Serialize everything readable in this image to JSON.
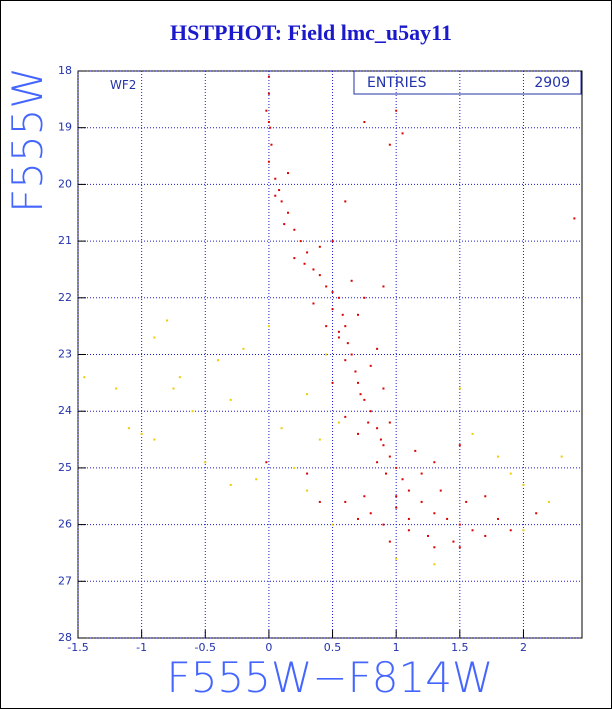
{
  "chart_data": {
    "type": "scatter",
    "title": "HSTPHOT: Field lmc_u5ay11",
    "annotation": "WF2",
    "stats": {
      "label": "ENTRIES",
      "value": 2909
    },
    "x_label": "F555W−F814W",
    "y_label": "F555W",
    "xlim": [
      -1.5,
      2.46
    ],
    "ylim": [
      18,
      28
    ],
    "y_inverted": true,
    "grid": true,
    "grid_color": "#1a1acc",
    "xticks": [
      -1.5,
      -1,
      -0.5,
      0,
      0.5,
      1,
      1.5,
      2
    ],
    "yticks": [
      18,
      19,
      20,
      21,
      22,
      23,
      24,
      25,
      26,
      27,
      28
    ],
    "series": [
      {
        "color": "#dd0000",
        "x": [
          0.0,
          0.0,
          -0.02,
          0.01,
          0.02,
          0.0,
          0.05,
          0.08,
          0.1,
          0.15,
          0.12,
          0.2,
          0.25,
          0.3,
          0.28,
          0.35,
          0.4,
          0.45,
          0.5,
          0.55,
          0.5,
          0.58,
          0.6,
          0.55,
          0.62,
          0.65,
          0.6,
          0.68,
          0.7,
          0.72,
          0.75,
          0.8,
          0.78,
          0.85,
          0.88,
          0.9,
          0.95,
          1.0,
          0.92,
          1.05,
          1.1,
          1.0,
          1.2,
          1.3,
          1.4,
          1.5,
          1.6,
          1.7,
          1.45,
          0.8,
          0.7,
          0.9,
          1.1,
          1.25,
          0.75,
          0.85,
          1.15,
          0.95,
          0.7,
          0.6,
          0.9,
          0.8,
          0.45,
          0.7,
          0.35,
          0.65,
          0.2,
          0.4,
          0.5,
          0.05,
          0.15,
          0.0,
          1.0,
          1.05,
          0.95,
          0.75,
          2.4,
          0.6,
          0.5,
          1.3,
          1.2,
          1.35,
          1.55,
          1.8,
          1.9,
          0.95,
          1.3,
          1.5,
          0.4,
          0.3,
          -0.02,
          1.5,
          0.85,
          0.55,
          0.75,
          0.9,
          1.7,
          1.0,
          1.1,
          0.6,
          2.1
        ],
        "y": [
          18.1,
          18.4,
          18.7,
          19.0,
          19.3,
          19.6,
          19.9,
          20.1,
          20.3,
          20.5,
          20.7,
          20.8,
          21.0,
          21.2,
          21.4,
          21.5,
          21.6,
          21.8,
          21.9,
          22.0,
          22.2,
          22.3,
          22.5,
          22.6,
          22.8,
          23.0,
          23.1,
          23.3,
          23.5,
          23.7,
          23.8,
          24.0,
          24.2,
          24.3,
          24.5,
          24.6,
          24.8,
          25.0,
          25.1,
          25.2,
          25.4,
          25.5,
          25.6,
          25.8,
          25.9,
          26.0,
          26.1,
          26.2,
          26.3,
          25.8,
          25.9,
          26.0,
          26.1,
          26.2,
          25.5,
          24.9,
          24.7,
          24.2,
          24.4,
          24.1,
          23.6,
          23.2,
          22.5,
          22.3,
          22.1,
          21.7,
          21.3,
          21.1,
          21.0,
          20.2,
          19.8,
          18.9,
          18.7,
          19.1,
          19.3,
          18.9,
          20.6,
          20.3,
          23.5,
          24.9,
          25.1,
          25.4,
          25.6,
          25.9,
          26.1,
          26.3,
          26.4,
          26.4,
          25.6,
          25.1,
          24.9,
          24.6,
          22.9,
          22.7,
          22.0,
          21.8,
          25.5,
          25.7,
          25.9,
          25.6,
          25.8
        ]
      },
      {
        "color": "#eecc00",
        "x": [
          -1.45,
          -1.2,
          -1.1,
          -0.9,
          -0.8,
          -0.75,
          -0.7,
          -0.6,
          -0.4,
          -0.3,
          -0.2,
          -0.1,
          0.0,
          0.1,
          0.2,
          0.3,
          0.4,
          0.45,
          0.55,
          0.3,
          -0.5,
          -0.3,
          1.5,
          1.6,
          1.8,
          2.0,
          2.2,
          2.3,
          2.0,
          1.0,
          0.5,
          1.3,
          1.9,
          -0.9,
          -1.0
        ],
        "y": [
          23.4,
          23.6,
          24.3,
          24.5,
          22.4,
          23.6,
          23.4,
          24.0,
          23.1,
          23.8,
          22.9,
          25.2,
          22.5,
          24.3,
          25.0,
          23.7,
          24.5,
          23.0,
          24.2,
          25.4,
          24.9,
          25.3,
          23.6,
          24.4,
          24.8,
          25.3,
          25.6,
          24.8,
          26.1,
          26.6,
          26.0,
          26.7,
          25.1,
          22.7,
          24.4
        ]
      }
    ]
  }
}
